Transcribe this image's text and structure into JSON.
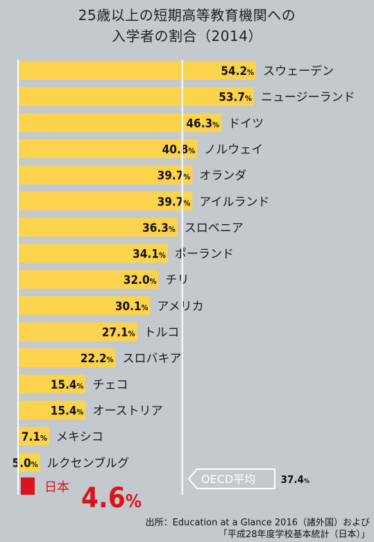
{
  "chart_data": {
    "type": "bar",
    "orientation": "horizontal",
    "title_line1": "25歳以上の短期高等教育機関への",
    "title_line2": "入学者の割合（2014）",
    "categories": [
      "スウェーデン",
      "ニュージーランド",
      "ドイツ",
      "ノルウェイ",
      "オランダ",
      "アイルランド",
      "スロベニア",
      "ポーランド",
      "チリ",
      "アメリカ",
      "トルコ",
      "スロバキア",
      "チェコ",
      "オーストリア",
      "メキシコ",
      "ルクセンブルグ"
    ],
    "values": [
      54.2,
      53.7,
      46.3,
      40.8,
      39.7,
      39.7,
      36.3,
      34.1,
      32.0,
      30.1,
      27.1,
      22.2,
      15.4,
      15.4,
      7.1,
      5.0
    ],
    "value_labels": [
      "54.2%",
      "53.7%",
      "46.3%",
      "40.8%",
      "39.7%",
      "39.7%",
      "36.3%",
      "34.1%",
      "32.0%",
      "30.1%",
      "27.1%",
      "22.2%",
      "15.4%",
      "15.4%",
      "7.1%",
      "5.0%"
    ],
    "highlight": {
      "category": "日本",
      "value": 4.6,
      "label": "4.6%"
    },
    "reference_line": {
      "name": "OECD平均",
      "value": 37.4,
      "label": "37.4%"
    },
    "xlim": [
      0,
      56
    ],
    "colors": {
      "bar": "#fcd34d",
      "highlight": "#d9141b",
      "background": "#c4c9ce",
      "axis": "#ffffff"
    }
  },
  "source_line1": "出所：Education at a Glance 2016（諸外国）および",
  "source_line2": "「平成28年度学校基本統計（日本）」"
}
